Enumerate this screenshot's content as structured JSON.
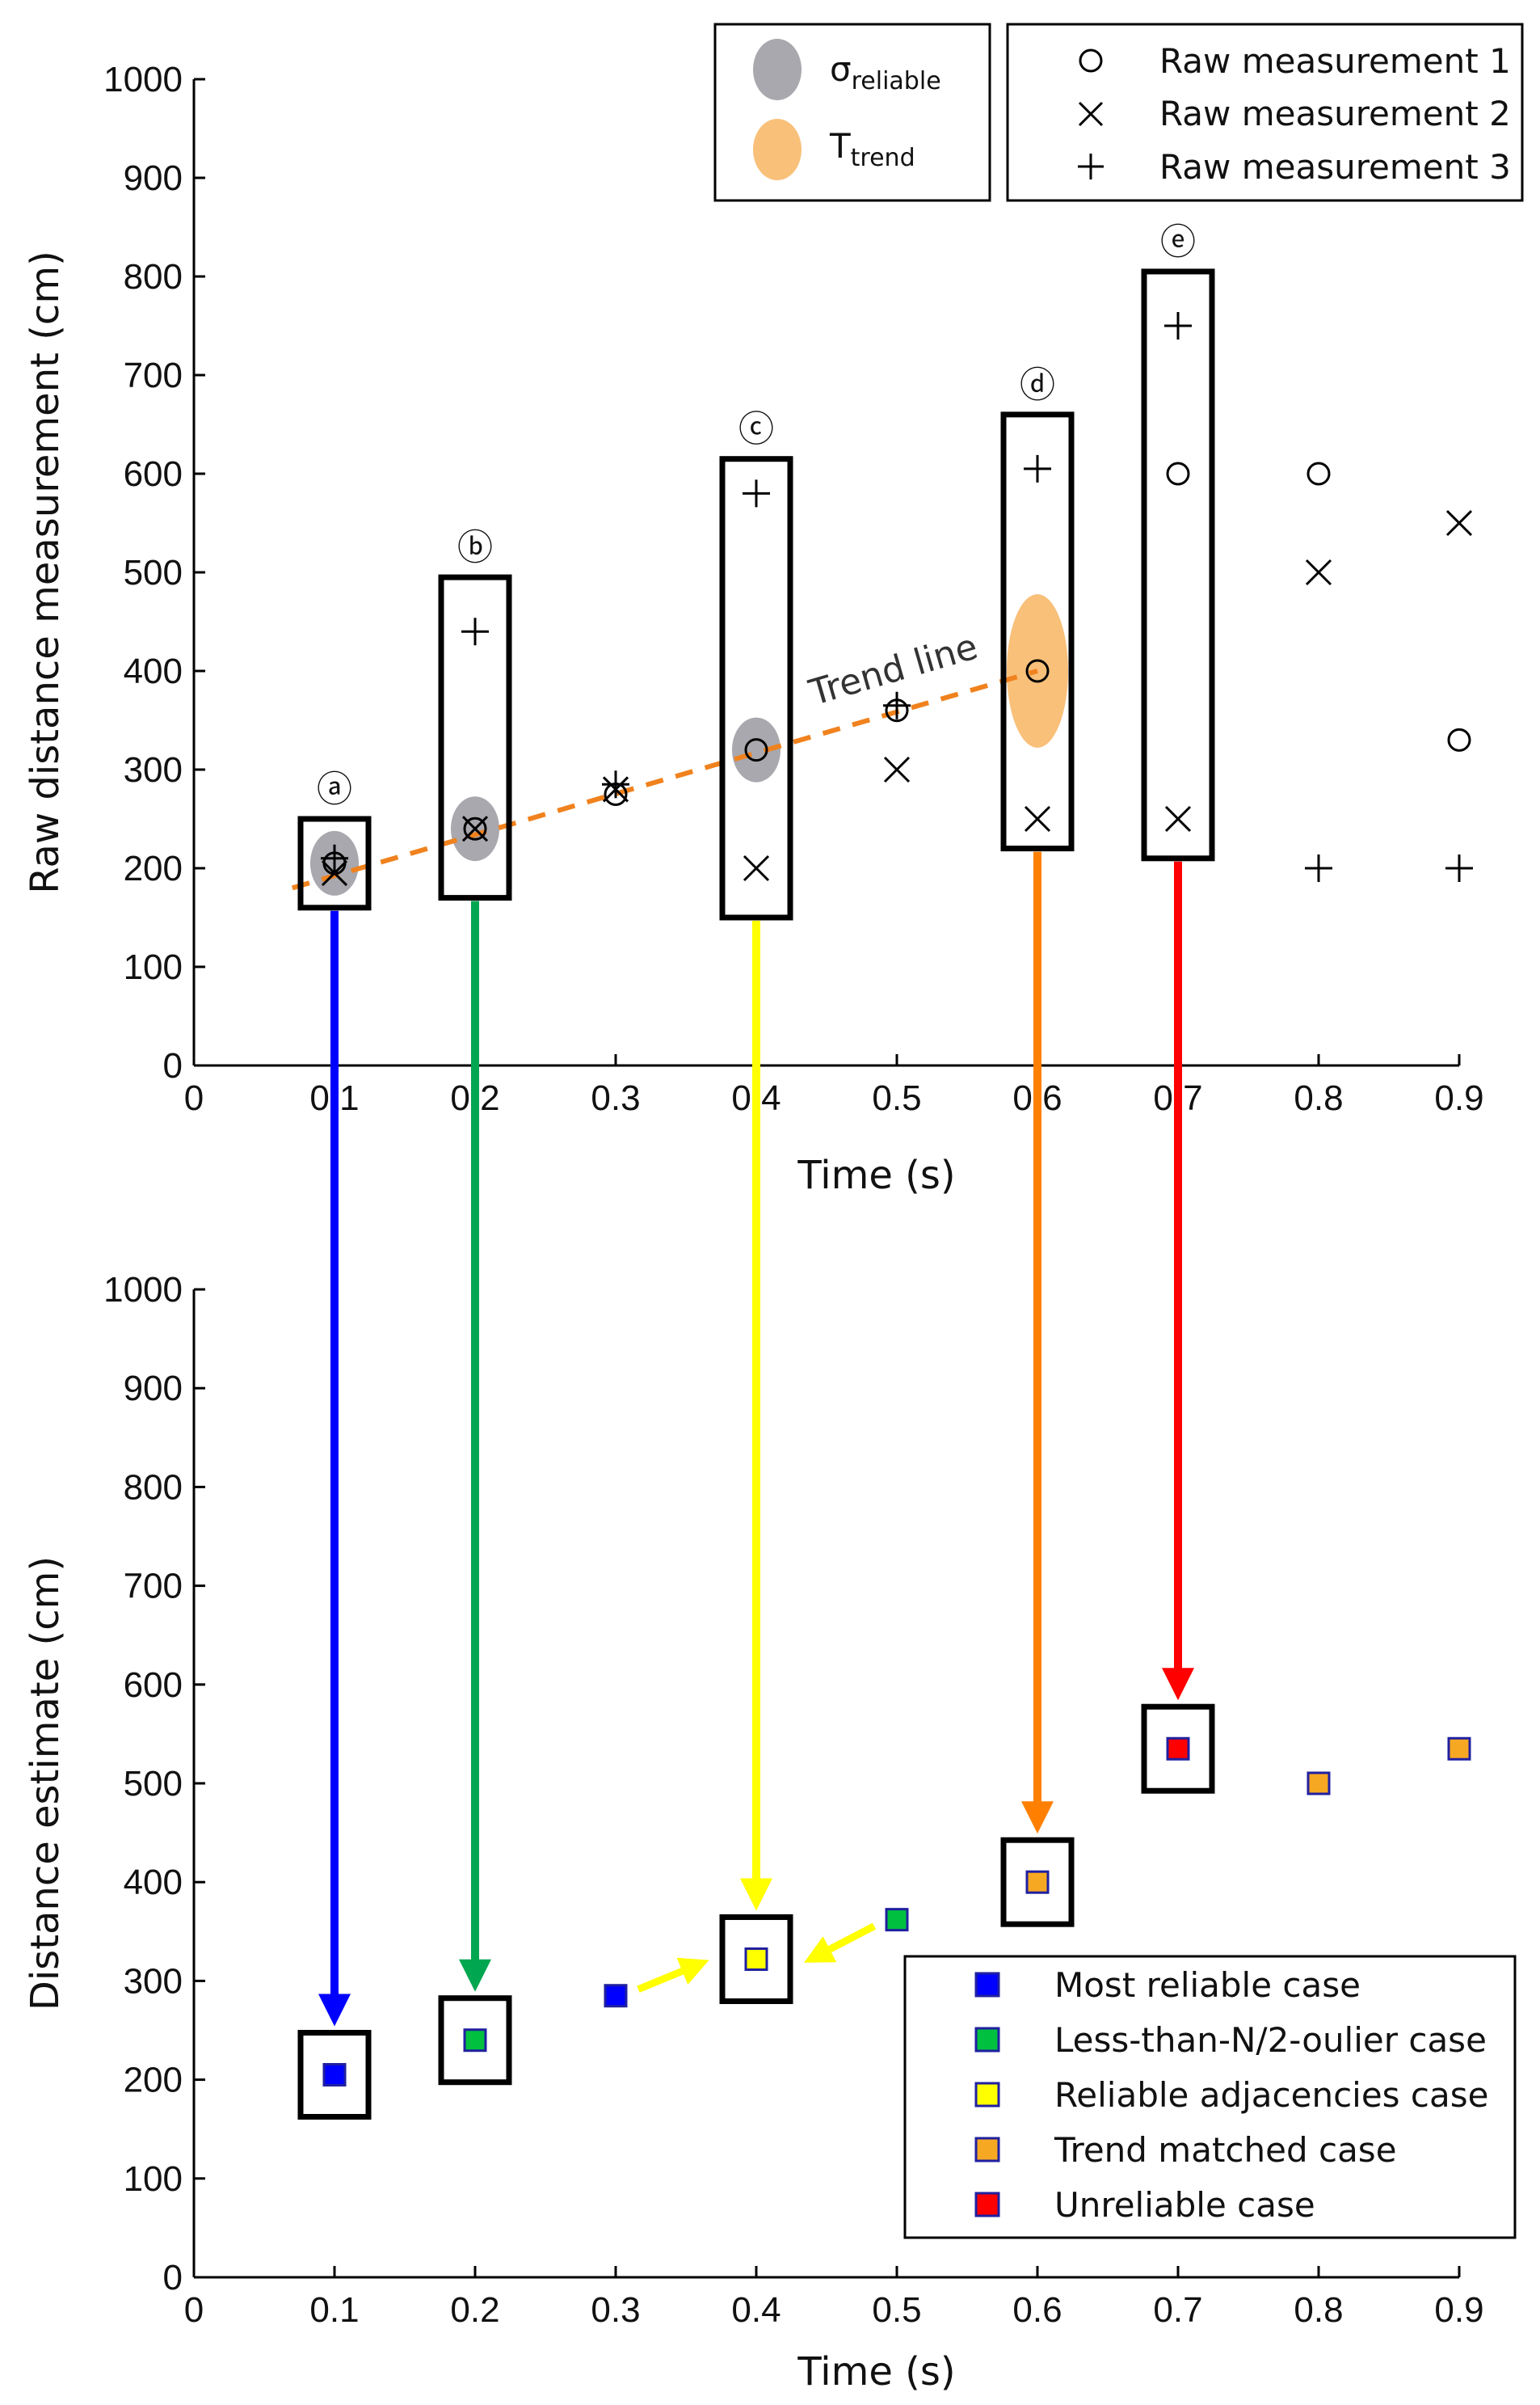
{
  "chart_data": [
    {
      "type": "scatter",
      "title": "",
      "xlabel": "Time (s)",
      "ylabel": "Raw distance measurement (cm)",
      "xlim": [
        0,
        0.9
      ],
      "ylim": [
        0,
        1000
      ],
      "xticks": [
        "0",
        "0.1",
        "0.2",
        "0.3",
        "0.4",
        "0.5",
        "0.6",
        "0.7",
        "0.8",
        "0.9"
      ],
      "yticks": [
        "0",
        "100",
        "200",
        "300",
        "400",
        "500",
        "600",
        "700",
        "800",
        "900",
        "1000"
      ],
      "series": [
        {
          "name": "Raw measurement 1",
          "marker": "circle",
          "points": [
            [
              0.1,
              205
            ],
            [
              0.2,
              240
            ],
            [
              0.3,
              275
            ],
            [
              0.4,
              320
            ],
            [
              0.5,
              360
            ],
            [
              0.6,
              400
            ],
            [
              0.7,
              600
            ],
            [
              0.8,
              600
            ],
            [
              0.9,
              330
            ]
          ]
        },
        {
          "name": "Raw measurement 2",
          "marker": "x",
          "points": [
            [
              0.1,
              195
            ],
            [
              0.2,
              240
            ],
            [
              0.3,
              280
            ],
            [
              0.4,
              200
            ],
            [
              0.5,
              300
            ],
            [
              0.6,
              250
            ],
            [
              0.7,
              250
            ],
            [
              0.8,
              500
            ],
            [
              0.9,
              550
            ]
          ]
        },
        {
          "name": "Raw measurement 3",
          "marker": "plus",
          "points": [
            [
              0.1,
              210
            ],
            [
              0.2,
              440
            ],
            [
              0.3,
              285
            ],
            [
              0.4,
              580
            ],
            [
              0.5,
              365
            ],
            [
              0.6,
              605
            ],
            [
              0.7,
              750
            ],
            [
              0.8,
              200
            ],
            [
              0.9,
              200
            ]
          ]
        }
      ],
      "ellipse_legend": [
        {
          "symbol": "σ",
          "subscript": "reliable",
          "color": "#a8a8ae"
        },
        {
          "symbol": "T",
          "subscript": "trend",
          "color": "#f9c07a"
        }
      ],
      "sigma_ellipses": [
        [
          0.1,
          205
        ],
        [
          0.2,
          240
        ],
        [
          0.4,
          320
        ]
      ],
      "trend_ellipse": [
        0.6,
        400
      ],
      "trend_line": {
        "label": "Trend line",
        "from": [
          0.07,
          180
        ],
        "to": [
          0.6,
          400
        ],
        "color": "#f0821e"
      },
      "boxes": [
        {
          "label": "ⓐ",
          "x": 0.1,
          "ymin": 160,
          "ymax": 250
        },
        {
          "label": "ⓑ",
          "x": 0.2,
          "ymin": 170,
          "ymax": 495
        },
        {
          "label": "ⓒ",
          "x": 0.4,
          "ymin": 150,
          "ymax": 615
        },
        {
          "label": "ⓓ",
          "x": 0.6,
          "ymin": 220,
          "ymax": 660
        },
        {
          "label": "ⓔ",
          "x": 0.7,
          "ymin": 210,
          "ymax": 805
        }
      ]
    },
    {
      "type": "scatter",
      "title": "",
      "xlabel": "Time (s)",
      "ylabel": "Distance estimate (cm)",
      "xlim": [
        0,
        0.9
      ],
      "ylim": [
        0,
        1000
      ],
      "xticks": [
        "0",
        "0.1",
        "0.2",
        "0.3",
        "0.4",
        "0.5",
        "0.6",
        "0.7",
        "0.8",
        "0.9"
      ],
      "yticks": [
        "0",
        "100",
        "200",
        "300",
        "400",
        "500",
        "600",
        "700",
        "800",
        "900",
        "1000"
      ],
      "points": [
        {
          "x": 0.1,
          "y": 205,
          "case": "Most reliable case"
        },
        {
          "x": 0.2,
          "y": 240,
          "case": "Less-than-N/2-oulier case"
        },
        {
          "x": 0.3,
          "y": 285,
          "case": "Most reliable case"
        },
        {
          "x": 0.4,
          "y": 322,
          "case": "Reliable adjacencies case"
        },
        {
          "x": 0.5,
          "y": 362,
          "case": "Less-than-N/2-oulier case"
        },
        {
          "x": 0.6,
          "y": 400,
          "case": "Trend matched case"
        },
        {
          "x": 0.7,
          "y": 535,
          "case": "Unreliable case"
        },
        {
          "x": 0.8,
          "y": 500,
          "case": "Trend matched case"
        },
        {
          "x": 0.9,
          "y": 535,
          "case": "Trend matched case"
        }
      ],
      "boxed_x": [
        0.1,
        0.2,
        0.4,
        0.6,
        0.7
      ],
      "legend": [
        {
          "label": "Most reliable case",
          "color": "#0000ff"
        },
        {
          "label": "Less-than-N/2-oulier case",
          "color": "#00c040"
        },
        {
          "label": "Reliable adjacencies case",
          "color": "#ffff00"
        },
        {
          "label": "Trend matched case",
          "color": "#f7a823"
        },
        {
          "label": "Unreliable case",
          "color": "#ff0000"
        }
      ]
    }
  ],
  "connectors": [
    {
      "x": 0.1,
      "color": "#0000ff"
    },
    {
      "x": 0.2,
      "color": "#00a650"
    },
    {
      "x": 0.4,
      "color": "#ffff00"
    },
    {
      "x": 0.6,
      "color": "#ff8000"
    },
    {
      "x": 0.7,
      "color": "#ff0000"
    }
  ],
  "side_arrows": {
    "color": "#ffff00",
    "from_x": [
      0.3,
      0.5
    ],
    "to_x": 0.4
  }
}
